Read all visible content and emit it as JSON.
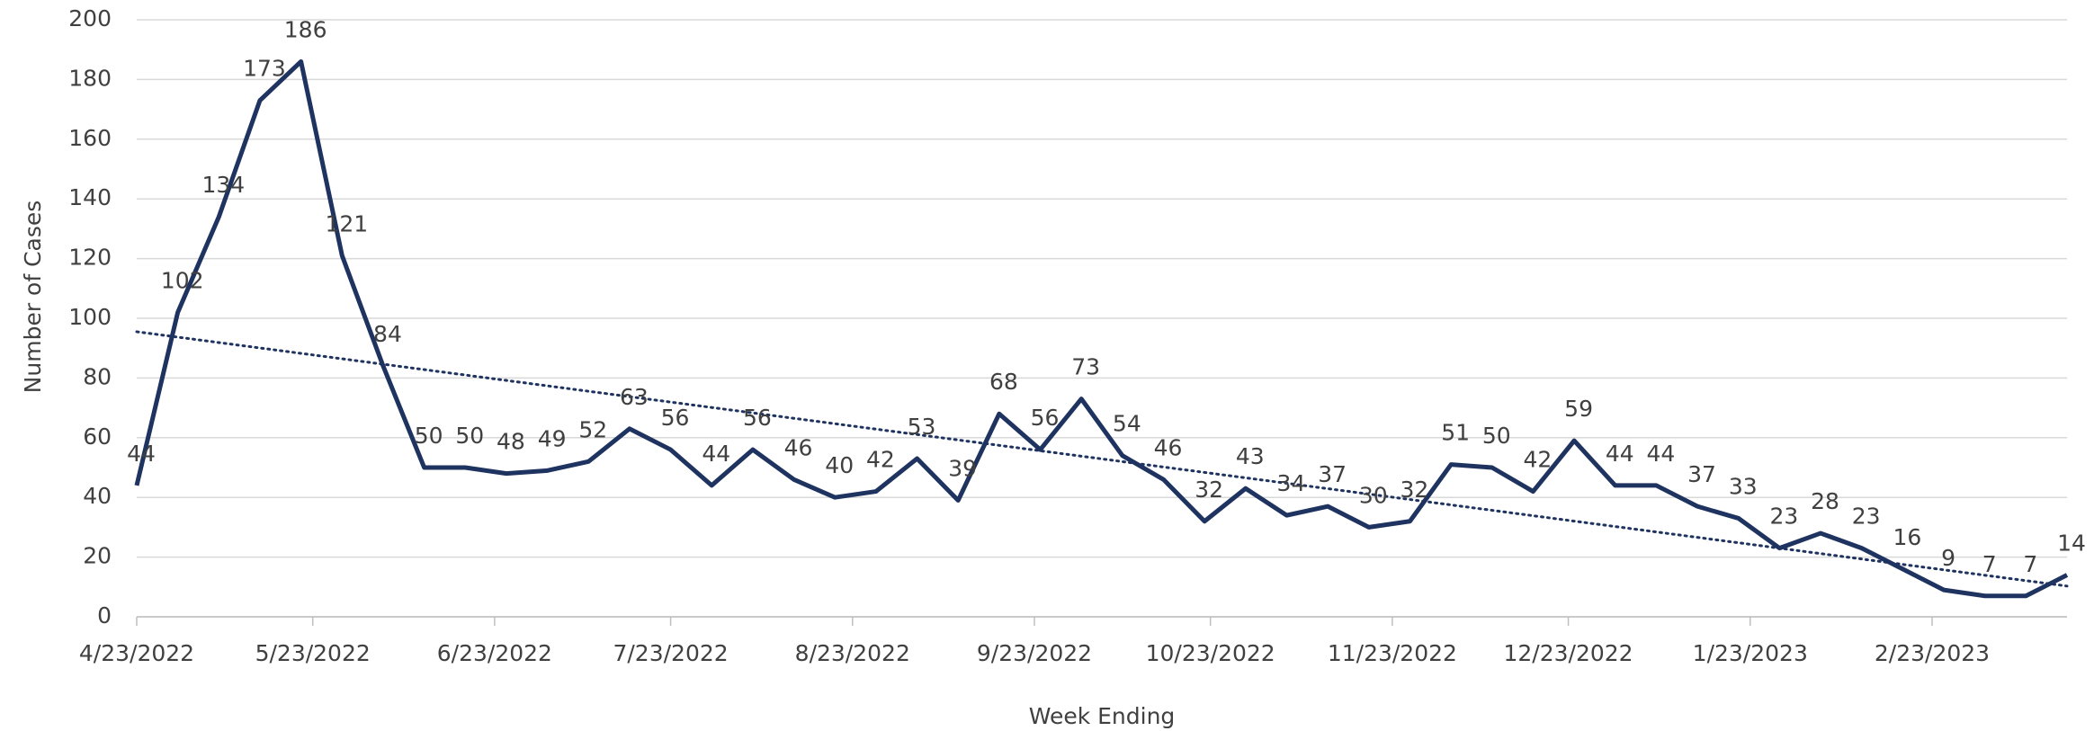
{
  "chart_data": {
    "type": "line",
    "x_label": "Week Ending",
    "y_label": "Number of Cases",
    "x": [
      "2022-04-23",
      "2022-04-30",
      "2022-05-07",
      "2022-05-14",
      "2022-05-21",
      "2022-05-28",
      "2022-06-04",
      "2022-06-11",
      "2022-06-18",
      "2022-06-25",
      "2022-07-02",
      "2022-07-09",
      "2022-07-16",
      "2022-07-23",
      "2022-07-30",
      "2022-08-06",
      "2022-08-13",
      "2022-08-20",
      "2022-08-27",
      "2022-09-03",
      "2022-09-10",
      "2022-09-17",
      "2022-09-24",
      "2022-10-01",
      "2022-10-08",
      "2022-10-15",
      "2022-10-22",
      "2022-10-29",
      "2022-11-05",
      "2022-11-12",
      "2022-11-19",
      "2022-11-26",
      "2022-12-03",
      "2022-12-10",
      "2022-12-17",
      "2022-12-24",
      "2022-12-31",
      "2023-01-07",
      "2023-01-14",
      "2023-01-21",
      "2023-01-28",
      "2023-02-04",
      "2023-02-11",
      "2023-02-18",
      "2023-02-25",
      "2023-03-04",
      "2023-03-11",
      "2023-03-18"
    ],
    "series": [
      {
        "color": "#1f3360",
        "values": [
          44,
          102,
          134,
          173,
          186,
          121,
          84,
          50,
          50,
          48,
          49,
          52,
          63,
          56,
          44,
          56,
          46,
          40,
          42,
          53,
          39,
          68,
          56,
          73,
          54,
          46,
          32,
          43,
          34,
          37,
          30,
          32,
          51,
          50,
          42,
          59,
          44,
          44,
          37,
          33,
          23,
          28,
          23,
          16,
          9,
          7,
          7,
          14
        ]
      }
    ],
    "trendline": {
      "color": "#1f3360",
      "values": [
        95.5,
        10.3
      ]
    },
    "xlim": [
      "2022-04-23",
      "2023-03-18"
    ],
    "xticks": [
      {
        "value": "2022-04-23",
        "label": "4/23/2022"
      },
      {
        "value": "2022-05-23",
        "label": "5/23/2022"
      },
      {
        "value": "2022-06-23",
        "label": "6/23/2022"
      },
      {
        "value": "2022-07-23",
        "label": "7/23/2022"
      },
      {
        "value": "2022-08-23",
        "label": "8/23/2022"
      },
      {
        "value": "2022-09-23",
        "label": "9/23/2022"
      },
      {
        "value": "2022-10-23",
        "label": "10/23/2022"
      },
      {
        "value": "2022-11-23",
        "label": "11/23/2022"
      },
      {
        "value": "2022-12-23",
        "label": "12/23/2022"
      },
      {
        "value": "2023-01-23",
        "label": "1/23/2023"
      },
      {
        "value": "2023-02-23",
        "label": "2/23/2023"
      }
    ],
    "ylim": [
      0,
      200
    ],
    "yticks": [
      0,
      20,
      40,
      60,
      80,
      100,
      120,
      140,
      160,
      180,
      200
    ],
    "grid": true
  }
}
